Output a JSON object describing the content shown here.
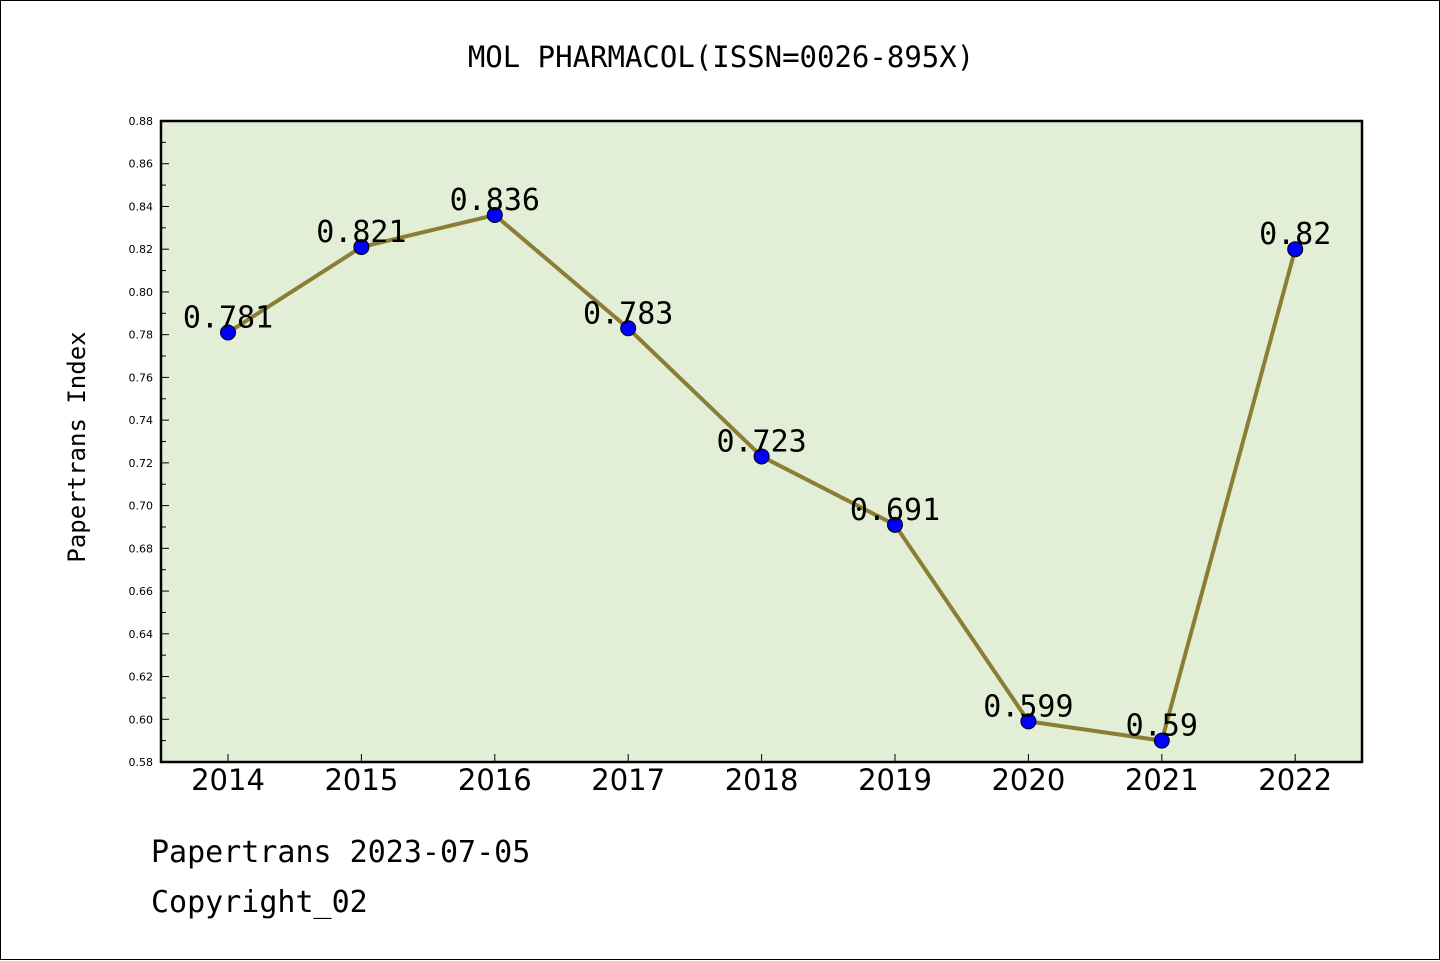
{
  "footer": {
    "line1": "Papertrans 2023-07-05",
    "line2": "Copyright_02"
  },
  "chart_data": {
    "type": "line",
    "title": "MOL PHARMACOL(ISSN=0026-895X)",
    "xlabel": "",
    "ylabel": "Papertrans Index",
    "categories": [
      "2014",
      "2015",
      "2016",
      "2017",
      "2018",
      "2019",
      "2020",
      "2021",
      "2022"
    ],
    "series": [
      {
        "values": [
          0.781,
          0.821,
          0.836,
          0.783,
          0.723,
          0.691,
          0.599,
          0.59,
          0.82
        ],
        "labels": [
          "0.781",
          "0.821",
          "0.836",
          "0.783",
          "0.723",
          "0.691",
          "0.599",
          "0.59",
          "0.82"
        ]
      }
    ],
    "ylim": [
      0.58,
      0.88
    ],
    "yticks": [
      "0.58",
      "0.60",
      "0.62",
      "0.64",
      "0.66",
      "0.68",
      "0.70",
      "0.72",
      "0.74",
      "0.76",
      "0.78",
      "0.80",
      "0.82",
      "0.84",
      "0.86",
      "0.88"
    ],
    "grid": false,
    "legend": "none",
    "colors": {
      "plot_background": "#e2efd6",
      "line": "#8b7d35",
      "marker": "#0000ff",
      "axes": "#000000"
    }
  }
}
